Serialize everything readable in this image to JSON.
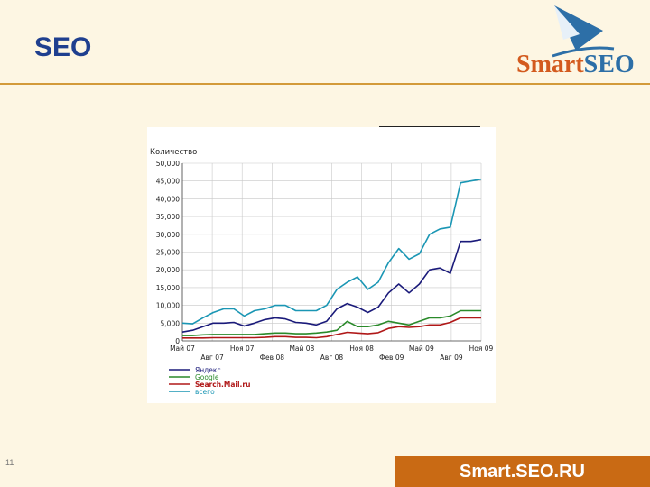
{
  "slide": {
    "title": "SEO",
    "page_number": "11",
    "footer": "Smart.SEO.RU"
  },
  "logo": {
    "part1": "Smart",
    "part2": "SEO"
  },
  "colors": {
    "title": "#1f3f8f",
    "rule": "#d39a3a",
    "footer_bg": "#c96a14"
  },
  "chart_data": {
    "type": "line",
    "ylabel": "Количество",
    "ylim": [
      0,
      50000
    ],
    "yticks": [
      "0",
      "5,000",
      "10,000",
      "15,000",
      "20,000",
      "25,000",
      "30,000",
      "35,000",
      "40,000",
      "45,000",
      "50,000"
    ],
    "x_tick_labels_top": [
      "Май 07",
      "Ноя 07",
      "Май 08",
      "Ноя 08",
      "Май 09",
      "Ноя 09"
    ],
    "x_tick_labels_bottom": [
      "Авг 07",
      "Фев 08",
      "Авг 08",
      "Фев 09",
      "Авг 09"
    ],
    "grid": true,
    "legend_position": "bottom-left",
    "series": [
      {
        "name": "Яндекс",
        "color": "#1a1a7a",
        "values": [
          2500,
          3000,
          4000,
          5000,
          5000,
          5200,
          4200,
          5000,
          6000,
          6500,
          6200,
          5200,
          5000,
          4500,
          5500,
          9000,
          10500,
          9500,
          8000,
          9500,
          13500,
          16000,
          13500,
          16000,
          20000,
          20500,
          19000,
          28000,
          28000,
          28500
        ]
      },
      {
        "name": "Google",
        "color": "#2a8a2a",
        "values": [
          1500,
          1500,
          1700,
          1800,
          1800,
          1800,
          1800,
          1800,
          2000,
          2200,
          2200,
          2000,
          2000,
          2200,
          2500,
          3000,
          5500,
          4000,
          4000,
          4500,
          5500,
          5000,
          4500,
          5500,
          6500,
          6500,
          7000,
          8500,
          8500,
          8500
        ]
      },
      {
        "name": "Search.Mail.ru",
        "color": "#b01818",
        "values": [
          800,
          800,
          800,
          900,
          900,
          900,
          900,
          900,
          1000,
          1200,
          1200,
          1000,
          1000,
          900,
          1200,
          1800,
          2400,
          2200,
          2000,
          2300,
          3500,
          4000,
          3800,
          4000,
          4500,
          4500,
          5200,
          6500,
          6500,
          6500
        ]
      },
      {
        "name": "всего",
        "color": "#1a96b4",
        "values": [
          5000,
          4800,
          6500,
          8000,
          9000,
          9000,
          7000,
          8500,
          9000,
          10000,
          10000,
          8500,
          8500,
          8500,
          10000,
          14500,
          16500,
          18000,
          14500,
          16500,
          22000,
          26000,
          23000,
          24500,
          30000,
          31500,
          32000,
          44500,
          45000,
          45500
        ]
      }
    ]
  }
}
